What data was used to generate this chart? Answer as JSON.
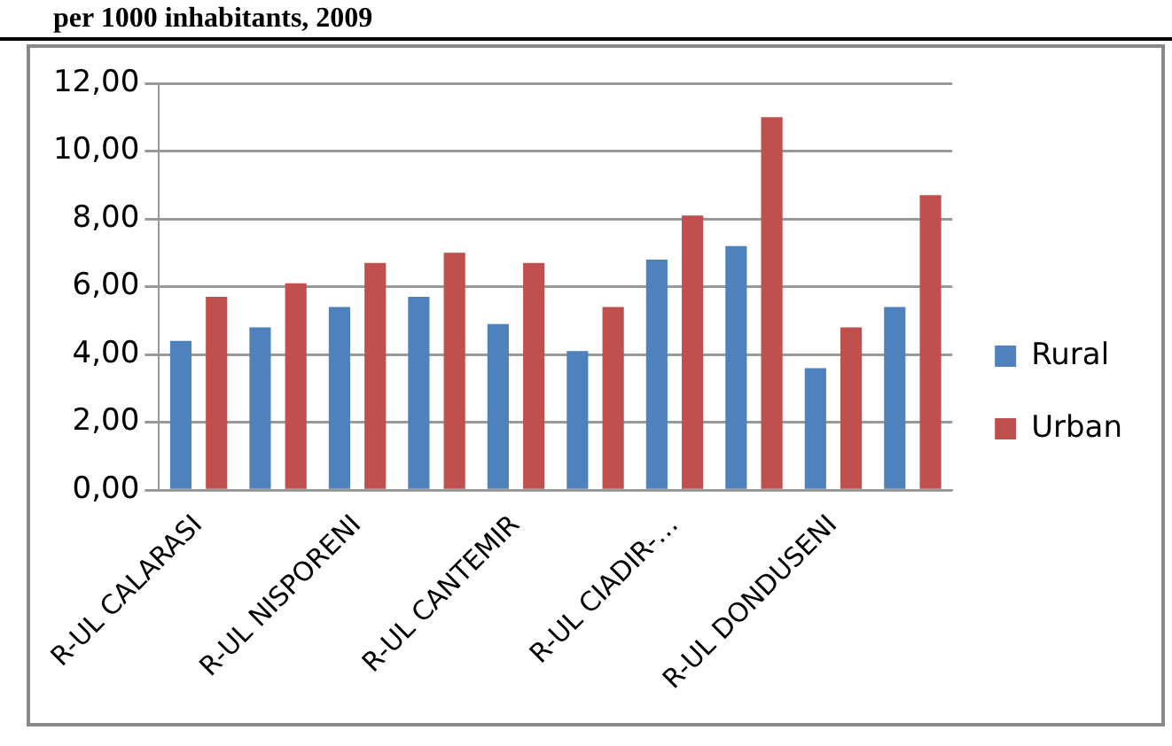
{
  "chart_data": {
    "type": "bar",
    "title": "per 1000 inhabitants, 2009",
    "categories": [
      "R-UL CALARASI",
      null,
      "R-UL NISPORENI",
      null,
      "R-UL CANTEMIR",
      null,
      "R-UL CIADIR-…",
      null,
      "R-UL DONDUSENI",
      null
    ],
    "series": [
      {
        "name": "Rural",
        "color": "#4f81bd",
        "values": [
          4.4,
          4.8,
          5.4,
          5.7,
          4.9,
          4.1,
          6.8,
          7.2,
          3.6,
          5.4
        ]
      },
      {
        "name": "Urban",
        "color": "#c0504d",
        "values": [
          5.7,
          6.1,
          6.7,
          7.0,
          6.7,
          5.4,
          8.1,
          11.0,
          4.8,
          8.7
        ]
      }
    ],
    "ylim": [
      0,
      12
    ],
    "yticks": [
      {
        "value": 0,
        "label": "0,00"
      },
      {
        "value": 2,
        "label": "2,00"
      },
      {
        "value": 4,
        "label": "4,00"
      },
      {
        "value": 6,
        "label": "6,00"
      },
      {
        "value": 8,
        "label": "8,00"
      },
      {
        "value": 10,
        "label": "10,00"
      },
      {
        "value": 12,
        "label": "12,00"
      }
    ],
    "grid": "y",
    "legend": "right"
  }
}
